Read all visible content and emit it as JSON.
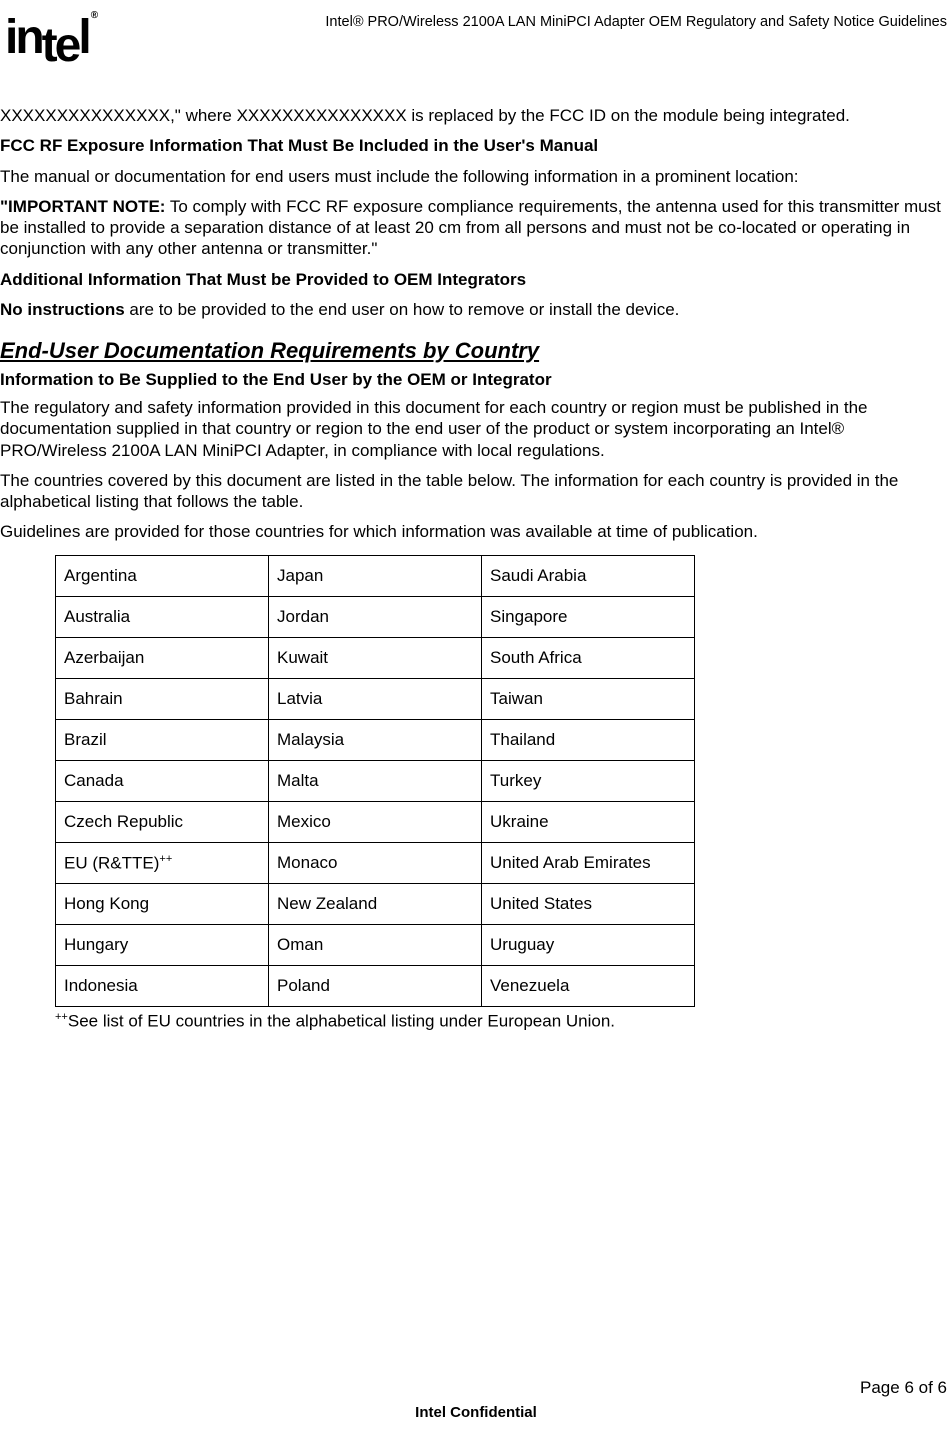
{
  "header": {
    "logo_text": "intel",
    "logo_registered": "®",
    "title": "Intel® PRO/Wireless 2100A LAN MiniPCI Adapter OEM Regulatory and Safety Notice Guidelines"
  },
  "body": {
    "para1": "XXXXXXXXXXXXXXX,\" where XXXXXXXXXXXXXXX is replaced by the FCC ID on the module being integrated.",
    "heading1": "FCC RF Exposure Information That Must Be Included in the User's Manual",
    "para2": "The manual or documentation for end users must include the following information in a prominent location:",
    "para3_bold": "\"IMPORTANT NOTE:",
    "para3_rest": " To comply with FCC RF exposure compliance requirements, the antenna used for this transmitter must be installed to provide a separation distance of at least 20 cm from all persons and must not be co-located or operating in conjunction with any other antenna or transmitter.\"",
    "heading2": "Additional Information That Must be Provided to OEM Integrators",
    "para4_bold": "No instructions",
    "para4_rest": " are to be provided to the end user on how to remove or install the device.",
    "section_heading": "End-User Documentation Requirements by Country",
    "heading3": "Information to Be Supplied to the End User by the OEM or Integrator",
    "para5": "The regulatory and safety information provided in this document for each country or region must be published in the documentation supplied in that country or region to the end user of the product or system incorporating an Intel® PRO/Wireless 2100A LAN MiniPCI Adapter, in compliance with local regulations.",
    "para6": "The countries covered by this document are listed in the table below. The information for each country is provided in the alphabetical listing that follows the table.",
    "para7": "Guidelines are provided for those countries for which information was available at time of publication.",
    "table_note_sup": "++",
    "table_note": "See list of EU countries in the alphabetical listing under European Union."
  },
  "countries_table": {
    "rows": [
      [
        "Argentina",
        "Japan",
        "Saudi Arabia"
      ],
      [
        "Australia",
        "Jordan",
        "Singapore"
      ],
      [
        "Azerbaijan",
        "Kuwait",
        "South Africa"
      ],
      [
        "Bahrain",
        "Latvia",
        "Taiwan"
      ],
      [
        "Brazil",
        "Malaysia",
        "Thailand"
      ],
      [
        "Canada",
        "Malta",
        "Turkey"
      ],
      [
        "Czech Republic",
        "Mexico",
        "Ukraine"
      ],
      [
        "EU (R&TTE)++",
        "Monaco",
        "United Arab Emirates"
      ],
      [
        "Hong Kong",
        "New Zealand",
        "United States"
      ],
      [
        "Hungary",
        "Oman",
        "Uruguay"
      ],
      [
        "Indonesia",
        "Poland",
        "Venezuela"
      ]
    ],
    "eu_row_index": 7,
    "eu_cell_base": "EU (R&TTE)",
    "eu_cell_sup": "++"
  },
  "footer": {
    "page_label": "Page ",
    "page_current": "6",
    "page_of": " of ",
    "page_total": "6",
    "confidential": "Intel Confidential"
  },
  "style": {
    "text_color": "#000000",
    "background_color": "#ffffff",
    "border_color": "#000000",
    "body_fontsize": 17,
    "header_fontsize": 14.5,
    "section_heading_fontsize": 22
  }
}
